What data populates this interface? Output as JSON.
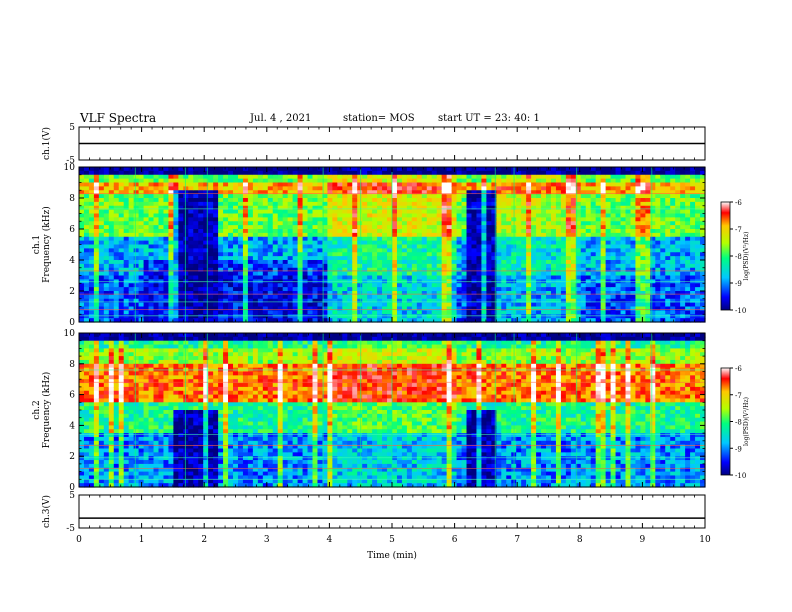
{
  "header": {
    "title": "VLF Spectra",
    "date": "Jul. 4 , 2021",
    "station": "station= MOS",
    "start_ut": "start UT =  23: 40: 1"
  },
  "chart_data": [
    {
      "type": "line",
      "panel": "ch1-waveform",
      "title": "",
      "ylabel": "ch.1(V)",
      "xlabel": "",
      "ylim": [
        -5,
        5
      ],
      "xlim": [
        0,
        10
      ],
      "yticks": [
        "5",
        "-5"
      ],
      "series": [
        {
          "x": [
            0,
            10
          ],
          "values": [
            0,
            0
          ]
        }
      ]
    },
    {
      "type": "heatmap",
      "panel": "ch1-spectrogram",
      "title": "",
      "ylabel": "ch.1 Frequency (kHz)",
      "xlim": [
        0,
        10
      ],
      "ylim": [
        0,
        10
      ],
      "yticks": [
        "0",
        "2",
        "4",
        "6",
        "8",
        "10"
      ],
      "colorbar": {
        "label": "log(PSD)(V²/Hz)",
        "range": [
          -10,
          -6
        ],
        "ticks": [
          "-6",
          "-7",
          "-8",
          "-9",
          "-10"
        ]
      },
      "colormap": [
        "#000080",
        "#0000ff",
        "#00c8ff",
        "#00ff80",
        "#b4ff00",
        "#ffc800",
        "#ff0000",
        "#ffffff"
      ]
    },
    {
      "type": "heatmap",
      "panel": "ch2-spectrogram",
      "title": "",
      "ylabel": "ch.2 Frequency (kHz)",
      "xlim": [
        0,
        10
      ],
      "ylim": [
        0,
        10
      ],
      "yticks": [
        "0",
        "2",
        "4",
        "6",
        "8",
        "10"
      ],
      "colorbar": {
        "label": "log(PSD)(V²/Hz)",
        "range": [
          -10,
          -6
        ],
        "ticks": [
          "-6",
          "-7",
          "-8",
          "-9",
          "-10"
        ]
      },
      "colormap": [
        "#000080",
        "#0000ff",
        "#00c8ff",
        "#00ff80",
        "#b4ff00",
        "#ffc800",
        "#ff0000",
        "#ffffff"
      ]
    },
    {
      "type": "line",
      "panel": "ch3-waveform",
      "title": "",
      "ylabel": "ch.3(V)",
      "xlabel": "Time (min)",
      "ylim": [
        -5,
        5
      ],
      "xlim": [
        0,
        10
      ],
      "yticks": [
        "5",
        "-5"
      ],
      "xticks": [
        "0",
        "1",
        "2",
        "3",
        "4",
        "5",
        "6",
        "7",
        "8",
        "9",
        "10"
      ],
      "series": [
        {
          "x": [
            0,
            10
          ],
          "values": [
            -2,
            -2
          ]
        }
      ]
    }
  ]
}
